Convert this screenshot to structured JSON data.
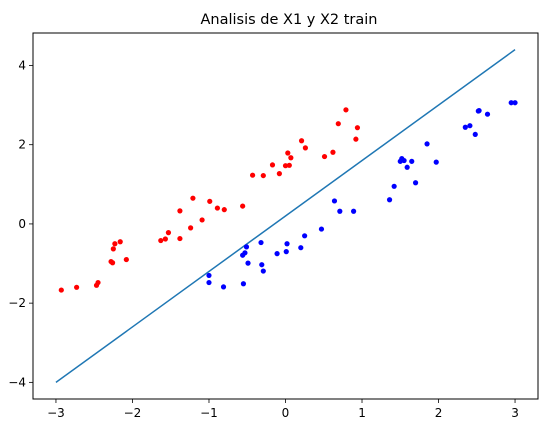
{
  "chart_data": {
    "type": "scatter",
    "title": "Analisis de X1 y X2 train",
    "xlabel": "",
    "ylabel": "",
    "xlim": [
      -3.3,
      3.3
    ],
    "ylim": [
      -4.42,
      4.82
    ],
    "xticks": [
      -3,
      -2,
      -1,
      0,
      1,
      2,
      3
    ],
    "yticks": [
      -4,
      -2,
      0,
      2,
      4
    ],
    "xtick_labels": [
      "−3",
      "−2",
      "−1",
      "0",
      "1",
      "2",
      "3"
    ],
    "ytick_labels": [
      "−4",
      "−2",
      "0",
      "2",
      "4"
    ],
    "grid": false,
    "series": [
      {
        "color": "#ff0000",
        "marker": "circle",
        "points": [
          [
            -2.93,
            -1.67
          ],
          [
            -2.73,
            -1.6
          ],
          [
            -2.47,
            -1.55
          ],
          [
            -2.45,
            -1.48
          ],
          [
            -2.28,
            -0.95
          ],
          [
            -2.26,
            -0.98
          ],
          [
            -2.25,
            -0.63
          ],
          [
            -2.23,
            -0.5
          ],
          [
            -2.16,
            -0.45
          ],
          [
            -2.08,
            -0.9
          ],
          [
            -1.63,
            -0.42
          ],
          [
            -1.57,
            -0.38
          ],
          [
            -1.53,
            -0.22
          ],
          [
            -1.38,
            -0.37
          ],
          [
            -1.38,
            0.33
          ],
          [
            -1.24,
            -0.1
          ],
          [
            -1.21,
            0.65
          ],
          [
            -1.09,
            0.1
          ],
          [
            -0.99,
            0.57
          ],
          [
            -0.89,
            0.4
          ],
          [
            -0.8,
            0.36
          ],
          [
            -0.56,
            0.45
          ],
          [
            -0.43,
            1.23
          ],
          [
            -0.29,
            1.22
          ],
          [
            -0.17,
            1.49
          ],
          [
            -0.08,
            1.27
          ],
          [
            0.0,
            1.47
          ],
          [
            0.03,
            1.79
          ],
          [
            0.05,
            1.48
          ],
          [
            0.07,
            1.67
          ],
          [
            0.21,
            2.1
          ],
          [
            0.26,
            1.92
          ],
          [
            0.51,
            1.7
          ],
          [
            0.62,
            1.81
          ],
          [
            0.69,
            2.53
          ],
          [
            0.79,
            2.88
          ],
          [
            0.92,
            2.14
          ],
          [
            0.94,
            2.43
          ]
        ]
      },
      {
        "color": "#0000ff",
        "marker": "circle",
        "points": [
          [
            -1.0,
            -1.3
          ],
          [
            -1.0,
            -1.48
          ],
          [
            -0.81,
            -1.59
          ],
          [
            -0.56,
            -0.79
          ],
          [
            -0.55,
            -1.51
          ],
          [
            -0.53,
            -0.73
          ],
          [
            -0.51,
            -0.58
          ],
          [
            -0.49,
            -0.99
          ],
          [
            -0.32,
            -0.47
          ],
          [
            -0.31,
            -1.03
          ],
          [
            -0.29,
            -1.19
          ],
          [
            -0.11,
            -0.75
          ],
          [
            0.01,
            -0.7
          ],
          [
            0.02,
            -0.5
          ],
          [
            0.2,
            -0.6
          ],
          [
            0.25,
            -0.3
          ],
          [
            0.47,
            -0.13
          ],
          [
            0.64,
            0.58
          ],
          [
            0.71,
            0.32
          ],
          [
            0.89,
            0.32
          ],
          [
            1.36,
            0.61
          ],
          [
            1.42,
            0.95
          ],
          [
            1.5,
            1.58
          ],
          [
            1.52,
            1.65
          ],
          [
            1.55,
            1.6
          ],
          [
            1.59,
            1.43
          ],
          [
            1.65,
            1.58
          ],
          [
            1.7,
            1.04
          ],
          [
            1.85,
            2.02
          ],
          [
            1.97,
            1.56
          ],
          [
            2.35,
            2.44
          ],
          [
            2.41,
            2.48
          ],
          [
            2.48,
            2.26
          ],
          [
            2.52,
            2.85
          ],
          [
            2.53,
            2.86
          ],
          [
            2.64,
            2.77
          ],
          [
            2.95,
            3.06
          ],
          [
            3.0,
            3.06
          ]
        ]
      }
    ],
    "line": {
      "color": "#1f77b4",
      "x": [
        -3.0,
        3.0
      ],
      "y": [
        -4.0,
        4.4
      ]
    }
  }
}
